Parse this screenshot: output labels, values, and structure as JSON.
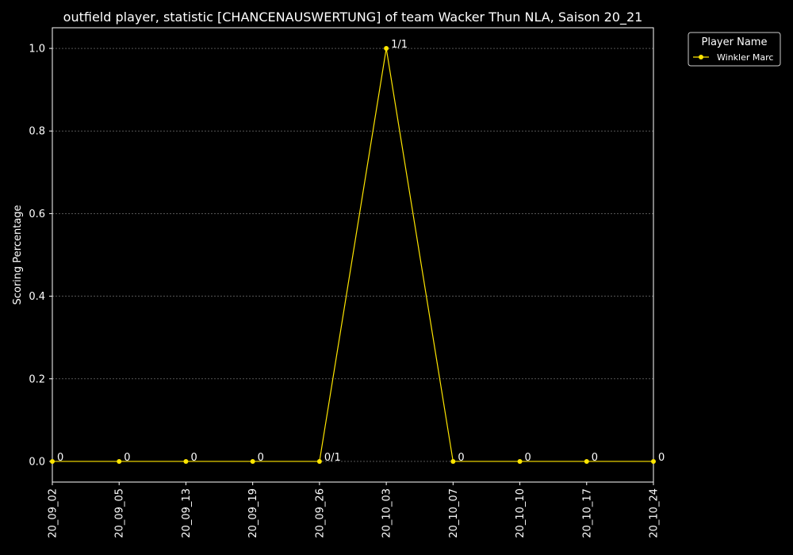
{
  "chart_data": {
    "type": "line",
    "title": "outfield player, statistic [CHANCENAUSWERTUNG] of team Wacker Thun NLA, Saison 20_21",
    "xlabel": "",
    "ylabel": "Scoring Percentage",
    "categories": [
      "20_09_02",
      "20_09_05",
      "20_09_13",
      "20_09_19",
      "20_09_26",
      "20_10_03",
      "20_10_07",
      "20_10_10",
      "20_10_17",
      "20_10_24"
    ],
    "series": [
      {
        "name": "Winkler Marc",
        "color": "#ffe600",
        "values": [
          0,
          0,
          0,
          0,
          0,
          1,
          0,
          0,
          0,
          0
        ],
        "labels": [
          "0",
          "0",
          "0",
          "0",
          "0/1",
          "1/1",
          "0",
          "0",
          "0",
          "0"
        ]
      }
    ],
    "ylim": [
      -0.05,
      1.05
    ],
    "yticks": [
      0.0,
      0.2,
      0.4,
      0.6,
      0.8,
      1.0
    ],
    "ytick_labels": [
      "0.0",
      "0.2",
      "0.4",
      "0.6",
      "0.8",
      "1.0"
    ],
    "grid": "horizontal dashed",
    "legend": {
      "title": "Player Name",
      "placement": "outside upper-right"
    },
    "colors": {
      "background": "#000000",
      "text": "#ffffff",
      "grid": "#888888",
      "line": "#ffe600"
    }
  }
}
